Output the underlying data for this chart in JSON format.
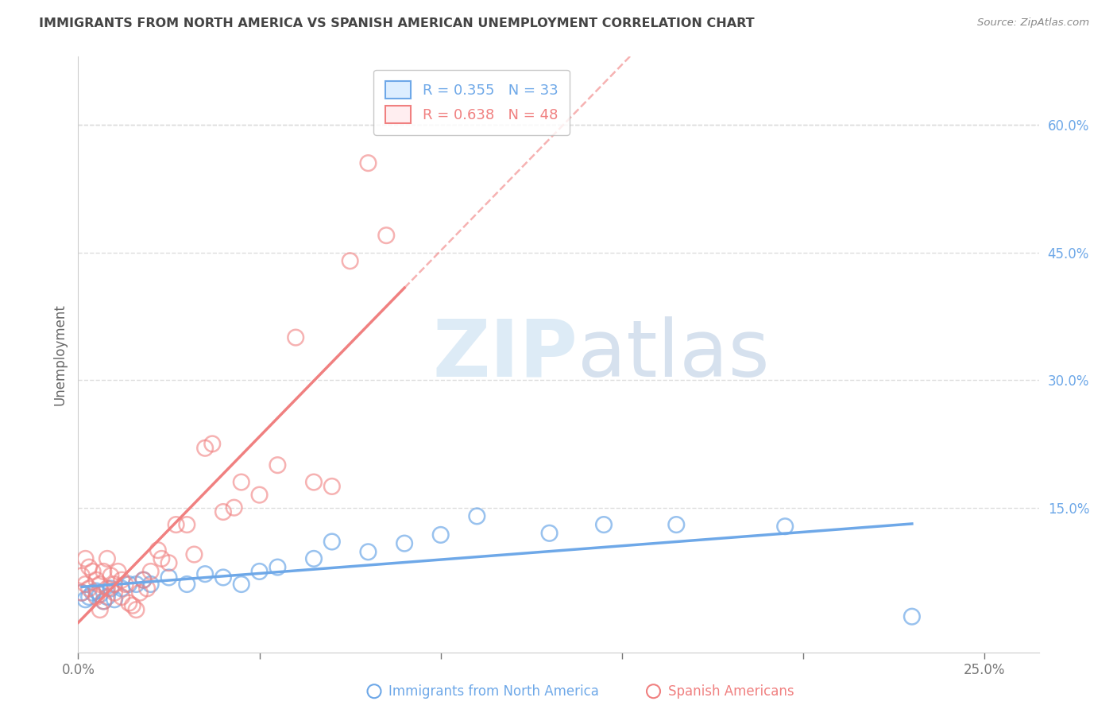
{
  "title": "IMMIGRANTS FROM NORTH AMERICA VS SPANISH AMERICAN UNEMPLOYMENT CORRELATION CHART",
  "source": "Source: ZipAtlas.com",
  "ylabel": "Unemployment",
  "xlim": [
    0.0,
    0.265
  ],
  "ylim": [
    -0.02,
    0.68
  ],
  "xticks": [
    0.0,
    0.05,
    0.1,
    0.15,
    0.2,
    0.25
  ],
  "yticks_right": [
    0.15,
    0.3,
    0.45,
    0.6
  ],
  "ytick_labels_right": [
    "15.0%",
    "30.0%",
    "45.0%",
    "60.0%"
  ],
  "xtick_labels": [
    "0.0%",
    "",
    "",
    "",
    "",
    "25.0%"
  ],
  "blue_R": 0.355,
  "blue_N": 33,
  "pink_R": 0.638,
  "pink_N": 48,
  "blue_color": "#6ea8e8",
  "pink_color": "#f08080",
  "legend_label_blue": "Immigrants from North America",
  "legend_label_pink": "Spanish Americans",
  "blue_scatter_x": [
    0.001,
    0.002,
    0.003,
    0.004,
    0.005,
    0.006,
    0.007,
    0.008,
    0.009,
    0.01,
    0.012,
    0.014,
    0.016,
    0.018,
    0.02,
    0.025,
    0.03,
    0.035,
    0.04,
    0.045,
    0.05,
    0.055,
    0.065,
    0.07,
    0.08,
    0.09,
    0.1,
    0.11,
    0.13,
    0.145,
    0.165,
    0.195,
    0.23
  ],
  "blue_scatter_y": [
    0.05,
    0.042,
    0.045,
    0.05,
    0.052,
    0.048,
    0.04,
    0.045,
    0.055,
    0.042,
    0.055,
    0.06,
    0.06,
    0.065,
    0.06,
    0.068,
    0.06,
    0.072,
    0.068,
    0.06,
    0.075,
    0.08,
    0.09,
    0.11,
    0.098,
    0.108,
    0.118,
    0.14,
    0.12,
    0.13,
    0.13,
    0.128,
    0.022
  ],
  "pink_scatter_x": [
    0.001,
    0.001,
    0.002,
    0.002,
    0.003,
    0.003,
    0.004,
    0.005,
    0.005,
    0.006,
    0.006,
    0.007,
    0.007,
    0.008,
    0.008,
    0.009,
    0.01,
    0.01,
    0.011,
    0.012,
    0.012,
    0.013,
    0.014,
    0.015,
    0.016,
    0.017,
    0.018,
    0.019,
    0.02,
    0.022,
    0.023,
    0.025,
    0.027,
    0.03,
    0.032,
    0.035,
    0.037,
    0.04,
    0.043,
    0.045,
    0.05,
    0.055,
    0.06,
    0.065,
    0.07,
    0.075,
    0.08,
    0.085
  ],
  "pink_scatter_y": [
    0.05,
    0.07,
    0.06,
    0.09,
    0.055,
    0.08,
    0.075,
    0.065,
    0.045,
    0.03,
    0.06,
    0.04,
    0.075,
    0.055,
    0.09,
    0.07,
    0.06,
    0.05,
    0.075,
    0.065,
    0.045,
    0.06,
    0.038,
    0.035,
    0.03,
    0.05,
    0.065,
    0.055,
    0.075,
    0.1,
    0.09,
    0.085,
    0.13,
    0.13,
    0.095,
    0.22,
    0.225,
    0.145,
    0.15,
    0.18,
    0.165,
    0.2,
    0.35,
    0.18,
    0.175,
    0.44,
    0.555,
    0.47
  ],
  "background_color": "#ffffff",
  "grid_color": "#dddddd",
  "title_color": "#444444",
  "axis_color": "#cccccc"
}
